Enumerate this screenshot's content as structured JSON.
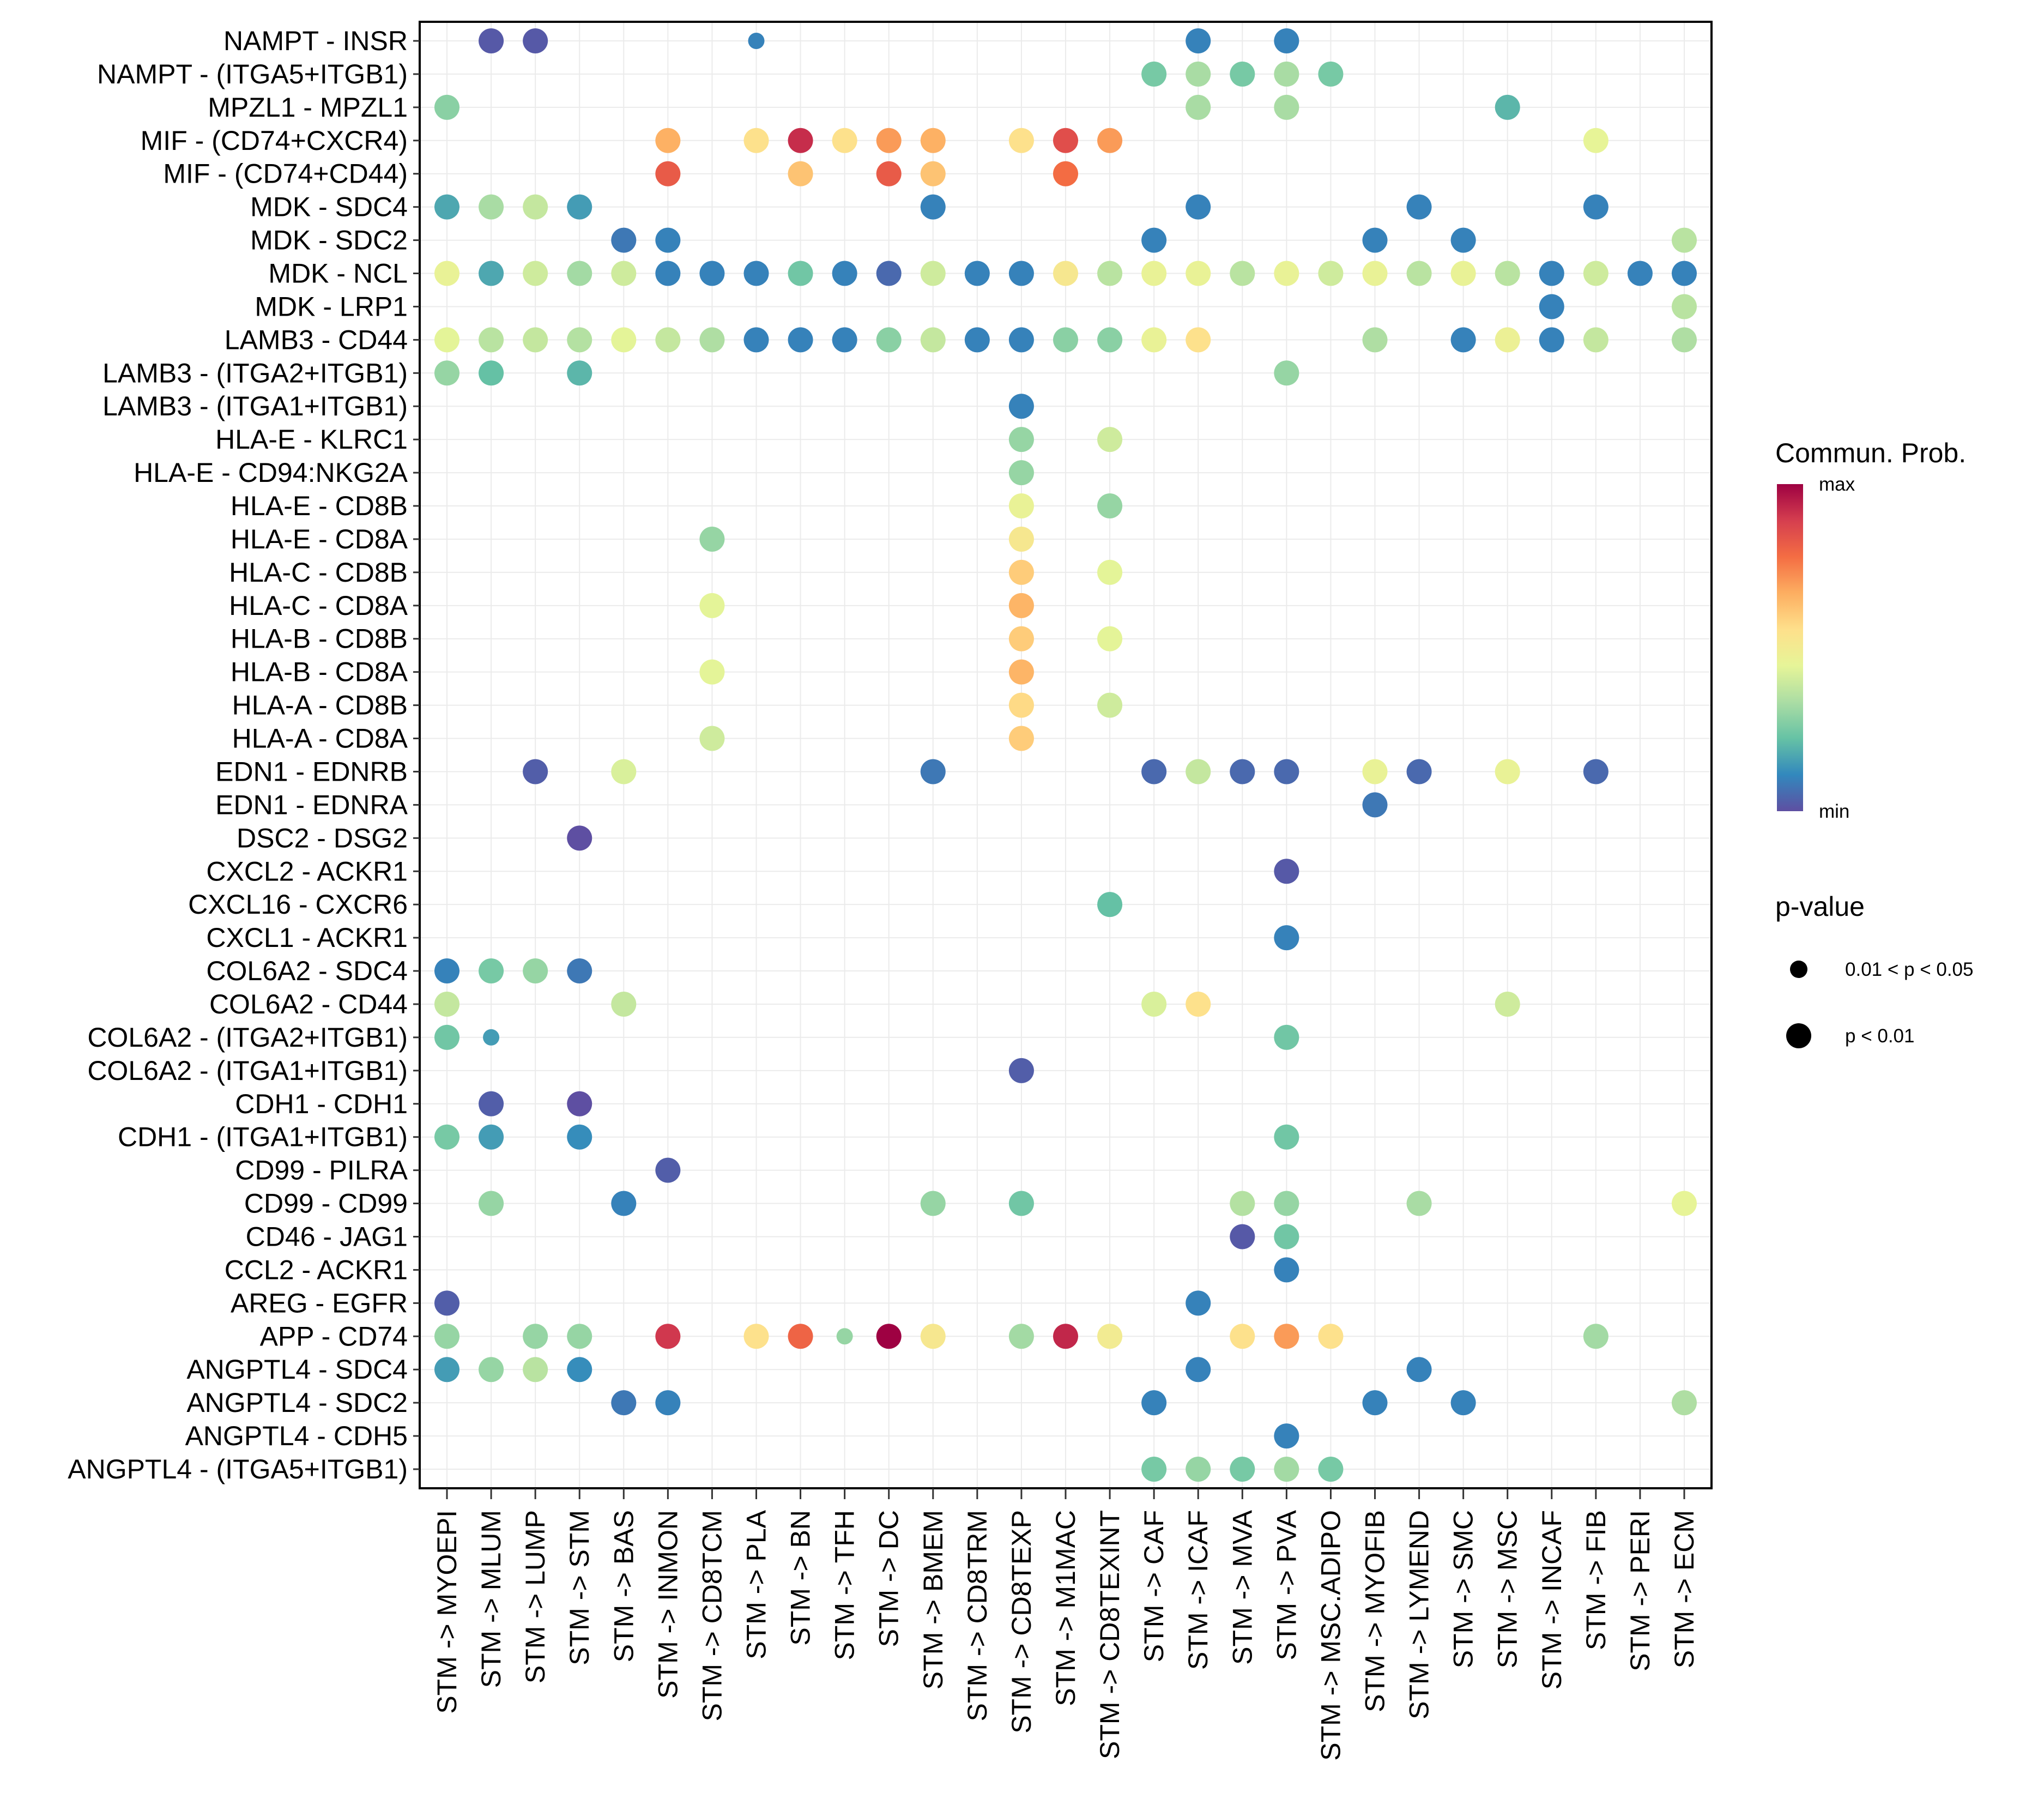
{
  "chart_data": {
    "type": "scatter",
    "subtype": "dot-matrix",
    "title": "",
    "xlabel": "",
    "ylabel": "",
    "x_categories": [
      "STM -> MYOEPI",
      "STM -> MLUM",
      "STM -> LUMP",
      "STM -> STM",
      "STM -> BAS",
      "STM -> INMON",
      "STM -> CD8TCM",
      "STM -> PLA",
      "STM -> BN",
      "STM -> TFH",
      "STM -> DC",
      "STM -> BMEM",
      "STM -> CD8TRM",
      "STM -> CD8TEXP",
      "STM -> M1MAC",
      "STM -> CD8TEXINT",
      "STM -> CAF",
      "STM -> ICAF",
      "STM -> MVA",
      "STM -> PVA",
      "STM -> MSC.ADIPO",
      "STM -> MYOFIB",
      "STM -> LYMEND",
      "STM -> SMC",
      "STM -> MSC",
      "STM -> INCAF",
      "STM -> FIB",
      "STM -> PERI",
      "STM -> ECM"
    ],
    "y_categories": [
      "NAMPT - INSR",
      "NAMPT - (ITGA5+ITGB1)",
      "MPZL1 - MPZL1",
      "MIF - (CD74+CXCR4)",
      "MIF - (CD74+CD44)",
      "MDK - SDC4",
      "MDK - SDC2",
      "MDK - NCL",
      "MDK - LRP1",
      "LAMB3 - CD44",
      "LAMB3 - (ITGA2+ITGB1)",
      "LAMB3 - (ITGA1+ITGB1)",
      "HLA-E - KLRC1",
      "HLA-E - CD94:NKG2A",
      "HLA-E - CD8B",
      "HLA-E - CD8A",
      "HLA-C - CD8B",
      "HLA-C - CD8A",
      "HLA-B - CD8B",
      "HLA-B - CD8A",
      "HLA-A - CD8B",
      "HLA-A - CD8A",
      "EDN1 - EDNRB",
      "EDN1 - EDNRA",
      "DSC2 - DSG2",
      "CXCL2 - ACKR1",
      "CXCL16 - CXCR6",
      "CXCL1 - ACKR1",
      "COL6A2 - SDC4",
      "COL6A2 - CD44",
      "COL6A2 - (ITGA2+ITGB1)",
      "COL6A2 - (ITGA1+ITGB1)",
      "CDH1 - CDH1",
      "CDH1 - (ITGA1+ITGB1)",
      "CD99 - PILRA",
      "CD99 - CD99",
      "CD46 - JAG1",
      "CCL2 - ACKR1",
      "AREG - EGFR",
      "APP - CD74",
      "ANGPTL4 - SDC4",
      "ANGPTL4 - SDC2",
      "ANGPTL4 - CDH5",
      "ANGPTL4 - (ITGA5+ITGB1)"
    ],
    "points_format": [
      "y_index",
      "x_index",
      "commun_prob_scaled_0_to_1",
      "pvalue_class"
    ],
    "pvalue_classes": [
      "0.01 < p < 0.05",
      "p < 0.01"
    ],
    "points": [
      [
        0,
        1,
        0.02,
        1
      ],
      [
        0,
        2,
        0.02,
        1
      ],
      [
        0,
        7,
        0.1,
        0
      ],
      [
        0,
        17,
        0.1,
        1
      ],
      [
        0,
        19,
        0.1,
        1
      ],
      [
        1,
        16,
        0.25,
        1
      ],
      [
        1,
        17,
        0.33,
        1
      ],
      [
        1,
        18,
        0.25,
        1
      ],
      [
        1,
        19,
        0.33,
        1
      ],
      [
        1,
        20,
        0.25,
        1
      ],
      [
        2,
        0,
        0.28,
        1
      ],
      [
        2,
        17,
        0.33,
        1
      ],
      [
        2,
        19,
        0.33,
        1
      ],
      [
        2,
        24,
        0.2,
        1
      ],
      [
        3,
        5,
        0.66,
        1
      ],
      [
        3,
        7,
        0.55,
        1
      ],
      [
        3,
        8,
        0.92,
        1
      ],
      [
        3,
        9,
        0.55,
        1
      ],
      [
        3,
        10,
        0.7,
        1
      ],
      [
        3,
        11,
        0.66,
        1
      ],
      [
        3,
        13,
        0.55,
        1
      ],
      [
        3,
        14,
        0.85,
        1
      ],
      [
        3,
        15,
        0.7,
        1
      ],
      [
        3,
        26,
        0.45,
        1
      ],
      [
        4,
        5,
        0.82,
        1
      ],
      [
        4,
        8,
        0.62,
        1
      ],
      [
        4,
        10,
        0.82,
        1
      ],
      [
        4,
        11,
        0.62,
        1
      ],
      [
        4,
        14,
        0.78,
        1
      ],
      [
        5,
        0,
        0.17,
        1
      ],
      [
        5,
        1,
        0.33,
        1
      ],
      [
        5,
        2,
        0.38,
        1
      ],
      [
        5,
        3,
        0.15,
        1
      ],
      [
        5,
        11,
        0.1,
        1
      ],
      [
        5,
        17,
        0.1,
        1
      ],
      [
        5,
        22,
        0.1,
        1
      ],
      [
        5,
        26,
        0.1,
        1
      ],
      [
        6,
        4,
        0.08,
        1
      ],
      [
        6,
        5,
        0.1,
        1
      ],
      [
        6,
        16,
        0.1,
        1
      ],
      [
        6,
        21,
        0.1,
        1
      ],
      [
        6,
        23,
        0.1,
        1
      ],
      [
        6,
        28,
        0.36,
        1
      ],
      [
        7,
        0,
        0.46,
        1
      ],
      [
        7,
        1,
        0.17,
        1
      ],
      [
        7,
        2,
        0.4,
        1
      ],
      [
        7,
        3,
        0.32,
        1
      ],
      [
        7,
        4,
        0.4,
        1
      ],
      [
        7,
        5,
        0.1,
        1
      ],
      [
        7,
        6,
        0.1,
        1
      ],
      [
        7,
        7,
        0.1,
        1
      ],
      [
        7,
        8,
        0.24,
        1
      ],
      [
        7,
        9,
        0.1,
        1
      ],
      [
        7,
        10,
        0.05,
        1
      ],
      [
        7,
        11,
        0.4,
        1
      ],
      [
        7,
        12,
        0.1,
        1
      ],
      [
        7,
        13,
        0.1,
        1
      ],
      [
        7,
        14,
        0.52,
        1
      ],
      [
        7,
        15,
        0.36,
        1
      ],
      [
        7,
        16,
        0.46,
        1
      ],
      [
        7,
        17,
        0.46,
        1
      ],
      [
        7,
        18,
        0.36,
        1
      ],
      [
        7,
        19,
        0.46,
        1
      ],
      [
        7,
        20,
        0.4,
        1
      ],
      [
        7,
        21,
        0.46,
        1
      ],
      [
        7,
        22,
        0.36,
        1
      ],
      [
        7,
        23,
        0.46,
        1
      ],
      [
        7,
        24,
        0.36,
        1
      ],
      [
        7,
        25,
        0.1,
        1
      ],
      [
        7,
        26,
        0.4,
        1
      ],
      [
        7,
        27,
        0.1,
        1
      ],
      [
        7,
        28,
        0.1,
        1
      ],
      [
        8,
        25,
        0.1,
        1
      ],
      [
        8,
        28,
        0.36,
        1
      ],
      [
        9,
        0,
        0.44,
        1
      ],
      [
        9,
        1,
        0.36,
        1
      ],
      [
        9,
        2,
        0.38,
        1
      ],
      [
        9,
        3,
        0.35,
        1
      ],
      [
        9,
        4,
        0.44,
        1
      ],
      [
        9,
        5,
        0.38,
        1
      ],
      [
        9,
        6,
        0.34,
        1
      ],
      [
        9,
        7,
        0.1,
        1
      ],
      [
        9,
        8,
        0.1,
        1
      ],
      [
        9,
        9,
        0.1,
        1
      ],
      [
        9,
        10,
        0.28,
        1
      ],
      [
        9,
        11,
        0.38,
        1
      ],
      [
        9,
        12,
        0.1,
        1
      ],
      [
        9,
        13,
        0.1,
        1
      ],
      [
        9,
        14,
        0.28,
        1
      ],
      [
        9,
        15,
        0.28,
        1
      ],
      [
        9,
        16,
        0.46,
        1
      ],
      [
        9,
        17,
        0.55,
        1
      ],
      [
        9,
        21,
        0.34,
        1
      ],
      [
        9,
        23,
        0.1,
        1
      ],
      [
        9,
        24,
        0.47,
        1
      ],
      [
        9,
        25,
        0.1,
        1
      ],
      [
        9,
        26,
        0.38,
        1
      ],
      [
        9,
        28,
        0.34,
        1
      ],
      [
        10,
        0,
        0.3,
        1
      ],
      [
        10,
        1,
        0.22,
        1
      ],
      [
        10,
        3,
        0.2,
        1
      ],
      [
        10,
        19,
        0.3,
        1
      ],
      [
        11,
        13,
        0.1,
        1
      ],
      [
        12,
        13,
        0.3,
        1
      ],
      [
        12,
        15,
        0.4,
        1
      ],
      [
        13,
        13,
        0.3,
        1
      ],
      [
        14,
        13,
        0.46,
        1
      ],
      [
        14,
        15,
        0.3,
        1
      ],
      [
        15,
        6,
        0.3,
        1
      ],
      [
        15,
        13,
        0.52,
        1
      ],
      [
        16,
        13,
        0.6,
        1
      ],
      [
        16,
        15,
        0.44,
        1
      ],
      [
        17,
        6,
        0.44,
        1
      ],
      [
        17,
        13,
        0.65,
        1
      ],
      [
        18,
        13,
        0.6,
        1
      ],
      [
        18,
        15,
        0.44,
        1
      ],
      [
        19,
        6,
        0.44,
        1
      ],
      [
        19,
        13,
        0.65,
        1
      ],
      [
        20,
        13,
        0.57,
        1
      ],
      [
        20,
        15,
        0.4,
        1
      ],
      [
        21,
        6,
        0.4,
        1
      ],
      [
        21,
        13,
        0.6,
        1
      ],
      [
        22,
        2,
        0.03,
        1
      ],
      [
        22,
        4,
        0.42,
        1
      ],
      [
        22,
        11,
        0.08,
        1
      ],
      [
        22,
        16,
        0.05,
        1
      ],
      [
        22,
        17,
        0.38,
        1
      ],
      [
        22,
        18,
        0.05,
        1
      ],
      [
        22,
        19,
        0.05,
        1
      ],
      [
        22,
        21,
        0.46,
        1
      ],
      [
        22,
        22,
        0.05,
        1
      ],
      [
        22,
        24,
        0.46,
        1
      ],
      [
        22,
        26,
        0.05,
        1
      ],
      [
        23,
        21,
        0.08,
        1
      ],
      [
        24,
        3,
        0.0,
        1
      ],
      [
        25,
        19,
        0.02,
        1
      ],
      [
        26,
        15,
        0.22,
        1
      ],
      [
        27,
        19,
        0.1,
        1
      ],
      [
        28,
        0,
        0.1,
        1
      ],
      [
        28,
        1,
        0.25,
        1
      ],
      [
        28,
        2,
        0.3,
        1
      ],
      [
        28,
        3,
        0.08,
        1
      ],
      [
        29,
        0,
        0.38,
        1
      ],
      [
        29,
        4,
        0.38,
        1
      ],
      [
        29,
        16,
        0.42,
        1
      ],
      [
        29,
        17,
        0.55,
        1
      ],
      [
        29,
        24,
        0.4,
        1
      ],
      [
        30,
        0,
        0.24,
        1
      ],
      [
        30,
        1,
        0.15,
        0
      ],
      [
        30,
        19,
        0.24,
        1
      ],
      [
        31,
        13,
        0.03,
        1
      ],
      [
        32,
        1,
        0.03,
        1
      ],
      [
        32,
        3,
        0.0,
        1
      ],
      [
        33,
        0,
        0.25,
        1
      ],
      [
        33,
        1,
        0.15,
        1
      ],
      [
        33,
        3,
        0.12,
        1
      ],
      [
        33,
        19,
        0.24,
        1
      ],
      [
        34,
        5,
        0.03,
        1
      ],
      [
        35,
        1,
        0.3,
        1
      ],
      [
        35,
        4,
        0.1,
        1
      ],
      [
        35,
        11,
        0.3,
        1
      ],
      [
        35,
        13,
        0.24,
        1
      ],
      [
        35,
        18,
        0.35,
        1
      ],
      [
        35,
        19,
        0.3,
        1
      ],
      [
        35,
        22,
        0.33,
        1
      ],
      [
        35,
        28,
        0.45,
        1
      ],
      [
        36,
        18,
        0.02,
        1
      ],
      [
        36,
        19,
        0.24,
        1
      ],
      [
        37,
        19,
        0.1,
        1
      ],
      [
        38,
        0,
        0.03,
        1
      ],
      [
        38,
        17,
        0.1,
        1
      ],
      [
        39,
        0,
        0.3,
        1
      ],
      [
        39,
        2,
        0.3,
        1
      ],
      [
        39,
        3,
        0.3,
        1
      ],
      [
        39,
        5,
        0.9,
        1
      ],
      [
        39,
        7,
        0.55,
        1
      ],
      [
        39,
        8,
        0.8,
        1
      ],
      [
        39,
        9,
        0.3,
        0
      ],
      [
        39,
        10,
        1.0,
        1
      ],
      [
        39,
        11,
        0.52,
        1
      ],
      [
        39,
        13,
        0.32,
        1
      ],
      [
        39,
        14,
        0.93,
        1
      ],
      [
        39,
        15,
        0.5,
        1
      ],
      [
        39,
        18,
        0.55,
        1
      ],
      [
        39,
        19,
        0.7,
        1
      ],
      [
        39,
        20,
        0.55,
        1
      ],
      [
        39,
        26,
        0.32,
        1
      ],
      [
        40,
        0,
        0.15,
        1
      ],
      [
        40,
        1,
        0.3,
        1
      ],
      [
        40,
        2,
        0.36,
        1
      ],
      [
        40,
        3,
        0.12,
        1
      ],
      [
        40,
        17,
        0.1,
        1
      ],
      [
        40,
        22,
        0.1,
        1
      ],
      [
        41,
        4,
        0.08,
        1
      ],
      [
        41,
        5,
        0.1,
        1
      ],
      [
        41,
        16,
        0.1,
        1
      ],
      [
        41,
        21,
        0.1,
        1
      ],
      [
        41,
        23,
        0.1,
        1
      ],
      [
        41,
        28,
        0.34,
        1
      ],
      [
        42,
        19,
        0.1,
        1
      ],
      [
        43,
        16,
        0.25,
        1
      ],
      [
        43,
        17,
        0.3,
        1
      ],
      [
        43,
        18,
        0.25,
        1
      ],
      [
        43,
        19,
        0.32,
        1
      ],
      [
        43,
        20,
        0.25,
        1
      ]
    ],
    "color_legend": {
      "title": "Commun. Prob.",
      "max_label": "max",
      "min_label": "min",
      "palette": "Spectral (reversed)",
      "stops": [
        "#5E4FA2",
        "#3288BD",
        "#66C2A5",
        "#ABDDA4",
        "#E6F598",
        "#FEE08B",
        "#FDAE61",
        "#F46D43",
        "#D53E4F",
        "#9E0142"
      ]
    },
    "size_legend": {
      "title": "p-value",
      "entries": [
        "0.01 < p < 0.05",
        "p < 0.01"
      ]
    },
    "grid": true
  }
}
